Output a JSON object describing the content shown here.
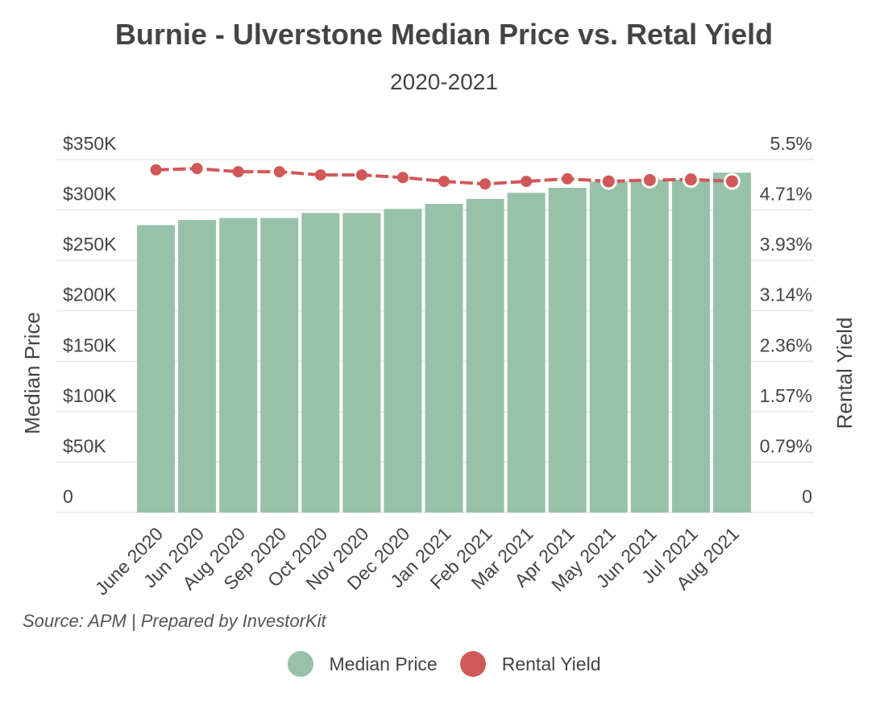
{
  "chart_data": {
    "type": "bar",
    "title": "Burnie - Ulverstone Median Price vs. Retal Yield",
    "subtitle": "2020-2021",
    "categories": [
      "June 2020",
      "Jun 2020",
      "Aug 2020",
      "Sep 2020",
      "Oct 2020",
      "Nov 2020",
      "Dec 2020",
      "Jan 2021",
      "Feb 2021",
      "Mar 2021",
      "Apr 2021",
      "May 2021",
      "Jun 2021",
      "Jul 2021",
      "Aug 2021"
    ],
    "series": [
      {
        "name": "Median Price",
        "type": "bar",
        "axis": "left",
        "color": "#98c1a9",
        "values": [
          285000,
          290000,
          292000,
          292000,
          297000,
          297000,
          301000,
          306000,
          311000,
          317000,
          322000,
          328000,
          330000,
          330000,
          337000
        ]
      },
      {
        "name": "Rental Yield",
        "type": "line",
        "axis": "right",
        "color": "#d05858",
        "values": [
          5.34,
          5.36,
          5.31,
          5.31,
          5.26,
          5.26,
          5.22,
          5.16,
          5.12,
          5.16,
          5.2,
          5.16,
          5.18,
          5.19,
          5.16
        ]
      }
    ],
    "ylabel": "Median Price",
    "ylabel_right": "Rental Yield",
    "yticks": [
      "0",
      "$50K",
      "$100K",
      "$150K",
      "$200K",
      "$250K",
      "$300K",
      "$350K"
    ],
    "yticks_right": [
      "0",
      "0.79%",
      "1.57%",
      "2.36%",
      "3.14%",
      "3.93%",
      "4.71%",
      "5.5%"
    ],
    "ylim": [
      0,
      350000
    ],
    "ylim_right": [
      0,
      5.5
    ],
    "grid": true,
    "legend_position": "bottom"
  },
  "source": "Source: APM | Prepared by InvestorKit",
  "legend": [
    {
      "label": "Median Price",
      "color": "#98c1a9"
    },
    {
      "label": "Rental Yield",
      "color": "#d05858"
    }
  ]
}
